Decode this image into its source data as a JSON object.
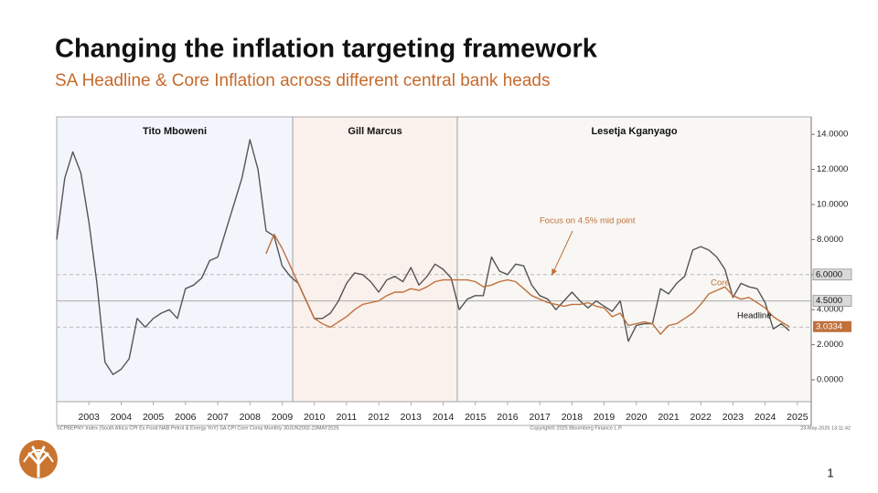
{
  "header": {
    "title": "Changing the inflation targeting framework",
    "subtitle": "SA Headline & Core Inflation across different central bank heads"
  },
  "chart_data": {
    "type": "line",
    "xlim": [
      2002.5,
      2025.93
    ],
    "ylim": [
      -1.25,
      15
    ],
    "xticks": [
      {
        "value": 2003.5,
        "label": "2003"
      },
      {
        "value": 2004.5,
        "label": "2004"
      },
      {
        "value": 2005.5,
        "label": "2005"
      },
      {
        "value": 2006.5,
        "label": "2006"
      },
      {
        "value": 2007.5,
        "label": "2007"
      },
      {
        "value": 2008.5,
        "label": "2008"
      },
      {
        "value": 2009.5,
        "label": "2009"
      },
      {
        "value": 2010.5,
        "label": "2010"
      },
      {
        "value": 2011.5,
        "label": "2011"
      },
      {
        "value": 2012.5,
        "label": "2012"
      },
      {
        "value": 2013.5,
        "label": "2013"
      },
      {
        "value": 2014.5,
        "label": "2014"
      },
      {
        "value": 2015.5,
        "label": "2015"
      },
      {
        "value": 2016.5,
        "label": "2016"
      },
      {
        "value": 2017.5,
        "label": "2017"
      },
      {
        "value": 2018.5,
        "label": "2018"
      },
      {
        "value": 2019.5,
        "label": "2019"
      },
      {
        "value": 2020.5,
        "label": "2020"
      },
      {
        "value": 2021.5,
        "label": "2021"
      },
      {
        "value": 2022.5,
        "label": "2022"
      },
      {
        "value": 2023.5,
        "label": "2023"
      },
      {
        "value": 2024.5,
        "label": "2024"
      },
      {
        "value": 2025.5,
        "label": "2025"
      }
    ],
    "yticks": [
      {
        "value": 0,
        "label": "0.0000"
      },
      {
        "value": 2,
        "label": "2.0000"
      },
      {
        "value": 4,
        "label": "4.0000"
      },
      {
        "value": 6,
        "label": "6.0000"
      },
      {
        "value": 8,
        "label": "8.0000"
      },
      {
        "value": 10,
        "label": "10.0000"
      },
      {
        "value": 12,
        "label": "12.0000"
      },
      {
        "value": 14,
        "label": "14.0000"
      }
    ],
    "regions": [
      {
        "label": "Tito Mboweni",
        "start": 2002.5,
        "end": 2009.83,
        "color": "#f3f5fc"
      },
      {
        "label": "Gill Marcus",
        "start": 2009.83,
        "end": 2014.94,
        "color": "#fbf1ec"
      },
      {
        "label": "Lesetja Kganyago",
        "start": 2014.94,
        "end": 2025.93,
        "color": "#f8f7f4"
      }
    ],
    "reference_lines": [
      {
        "value": 6,
        "label": "6.0000",
        "dashed": true
      },
      {
        "value": 4.5,
        "label": "4.5000",
        "dashed": false
      },
      {
        "value": 3,
        "dashed": true
      }
    ],
    "series": [
      {
        "name": "Headline",
        "color": "#555555",
        "x": [
          2002.5,
          2002.75,
          2003,
          2003.25,
          2003.5,
          2003.75,
          2004,
          2004.25,
          2004.5,
          2004.75,
          2005,
          2005.25,
          2005.5,
          2005.75,
          2006,
          2006.25,
          2006.5,
          2006.75,
          2007,
          2007.25,
          2007.5,
          2007.75,
          2008,
          2008.25,
          2008.5,
          2008.75,
          2009,
          2009.25,
          2009.5,
          2009.75,
          2010,
          2010.25,
          2010.5,
          2010.75,
          2011,
          2011.25,
          2011.5,
          2011.75,
          2012,
          2012.25,
          2012.5,
          2012.75,
          2013,
          2013.25,
          2013.5,
          2013.75,
          2014,
          2014.25,
          2014.5,
          2014.75,
          2015,
          2015.25,
          2015.5,
          2015.75,
          2016,
          2016.25,
          2016.5,
          2016.75,
          2017,
          2017.25,
          2017.5,
          2017.75,
          2018,
          2018.25,
          2018.5,
          2018.75,
          2019,
          2019.25,
          2019.5,
          2019.75,
          2020,
          2020.25,
          2020.5,
          2020.75,
          2021,
          2021.25,
          2021.5,
          2021.75,
          2022,
          2022.25,
          2022.5,
          2022.75,
          2023,
          2023.25,
          2023.5,
          2023.75,
          2024,
          2024.25,
          2024.5,
          2024.75,
          2025,
          2025.25
        ],
        "values": [
          8.0,
          11.5,
          13.0,
          11.8,
          9.0,
          5.5,
          1.0,
          0.3,
          0.6,
          1.2,
          3.5,
          3.0,
          3.5,
          3.8,
          4.0,
          3.5,
          5.2,
          5.4,
          5.8,
          6.8,
          7.0,
          8.5,
          10.0,
          11.5,
          13.7,
          12.0,
          8.5,
          8.2,
          6.5,
          5.9,
          5.5,
          4.5,
          3.5,
          3.5,
          3.8,
          4.5,
          5.5,
          6.1,
          6.0,
          5.6,
          5.0,
          5.7,
          5.9,
          5.6,
          6.4,
          5.4,
          5.9,
          6.6,
          6.3,
          5.8,
          4.0,
          4.6,
          4.8,
          4.8,
          7.0,
          6.2,
          6.0,
          6.6,
          6.5,
          5.4,
          4.8,
          4.6,
          4.0,
          4.5,
          5.0,
          4.5,
          4.1,
          4.5,
          4.2,
          3.9,
          4.5,
          2.2,
          3.1,
          3.2,
          3.2,
          5.2,
          4.9,
          5.5,
          5.9,
          7.4,
          7.6,
          7.4,
          7.0,
          6.3,
          4.7,
          5.5,
          5.3,
          5.2,
          4.4,
          2.9,
          3.2,
          2.8
        ]
      },
      {
        "name": "Core",
        "color": "#c0703c",
        "x": [
          2009,
          2009.25,
          2009.5,
          2009.75,
          2010,
          2010.25,
          2010.5,
          2010.75,
          2011,
          2011.25,
          2011.5,
          2011.75,
          2012,
          2012.25,
          2012.5,
          2012.75,
          2013,
          2013.25,
          2013.5,
          2013.75,
          2014,
          2014.25,
          2014.5,
          2014.75,
          2015,
          2015.25,
          2015.5,
          2015.75,
          2016,
          2016.25,
          2016.5,
          2016.75,
          2017,
          2017.25,
          2017.5,
          2017.75,
          2018,
          2018.25,
          2018.5,
          2018.75,
          2019,
          2019.25,
          2019.5,
          2019.75,
          2020,
          2020.25,
          2020.5,
          2020.75,
          2021,
          2021.25,
          2021.5,
          2021.75,
          2022,
          2022.25,
          2022.5,
          2022.75,
          2023,
          2023.25,
          2023.5,
          2023.75,
          2024,
          2024.25,
          2024.5,
          2024.75,
          2025,
          2025.25
        ],
        "values": [
          7.2,
          8.3,
          7.5,
          6.5,
          5.5,
          4.5,
          3.5,
          3.2,
          3.0,
          3.3,
          3.6,
          4.0,
          4.3,
          4.4,
          4.5,
          4.8,
          5.0,
          5.0,
          5.2,
          5.1,
          5.3,
          5.6,
          5.7,
          5.7,
          5.7,
          5.7,
          5.6,
          5.3,
          5.4,
          5.6,
          5.7,
          5.6,
          5.2,
          4.8,
          4.6,
          4.4,
          4.3,
          4.2,
          4.3,
          4.3,
          4.4,
          4.2,
          4.1,
          3.6,
          3.8,
          3.1,
          3.2,
          3.3,
          3.2,
          2.6,
          3.1,
          3.2,
          3.5,
          3.8,
          4.3,
          4.9,
          5.1,
          5.3,
          4.8,
          4.6,
          4.7,
          4.4,
          4.1,
          3.6,
          3.3,
          3.0334
        ],
        "value_labels": {
          "65": "3.0334"
        }
      }
    ],
    "annotations": [
      "Focus on 4.5% mid point",
      "Core",
      "Headline"
    ]
  },
  "footer": {
    "source": "SCPBEPNY Index (South Africa CPI Ex Food NAB Petrol & Energy YoY) SA CPI Core Comp  Monthly 30JUN2002-23MAY2025",
    "copyright": "Copyright© 2025 Bloomberg Finance L.P.",
    "timestamp": "23-May-2025 13:11:42",
    "page_number": "1"
  }
}
